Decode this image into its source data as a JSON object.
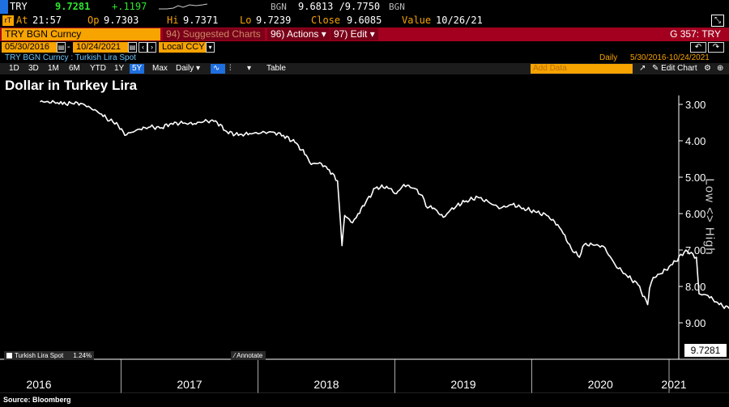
{
  "header": {
    "ticker": "TRY",
    "last": "9.7281",
    "change": "+.1197",
    "bid_ask_source": "BGN",
    "bid_ask": "9.6813 /9.7750",
    "bid_ask_source2": "BGN",
    "at_label": "At",
    "time": "21:57",
    "op_label": "Op",
    "op": "9.7303",
    "hi_label": "Hi",
    "hi": "9.7371",
    "lo_label": "Lo",
    "lo": "9.7239",
    "close_label": "Close",
    "close": "9.6085",
    "value_label": "Value",
    "value_date": "10/26/21"
  },
  "toolbar": {
    "security": "TRY BGN Curncy",
    "suggested": "94) Suggested Charts",
    "actions": "96) Actions",
    "edit": "97) Edit",
    "page_id": "G 357: TRY"
  },
  "range": {
    "start": "05/30/2016",
    "end": "10/24/2021",
    "currency": "Local CCY"
  },
  "info": {
    "description": "TRY BGN Curncy : Turkish Lira Spot",
    "frequency": "Daily",
    "period": "5/30/2016-10/24/2021"
  },
  "periods": [
    "1D",
    "3D",
    "1M",
    "6M",
    "YTD",
    "1Y",
    "5Y",
    "Max"
  ],
  "selected_period": "5Y",
  "controls": {
    "daily": "Daily",
    "table": "Table",
    "add_data": "Add Data",
    "edit_chart": "Edit Chart"
  },
  "title": "Dollar in Turkey Lira",
  "source": "Source: Bloomberg",
  "annotate": "Annotate",
  "side_label": "Low <> High",
  "colors": {
    "amber": "#f7a300",
    "bar_red": "#a3001f",
    "up_green": "#2ee52e",
    "line": "#ffffff"
  },
  "chart_data": {
    "type": "line",
    "title": "Dollar in Turkey Lira",
    "y_axis_inverted": true,
    "ylim": [
      3.0,
      9.8
    ],
    "yticks": [
      "3.00",
      "4.00",
      "5.00",
      "6.00",
      "7.00",
      "8.00",
      "9.00"
    ],
    "x_year_labels": [
      "2016",
      "2017",
      "2018",
      "2019",
      "2020",
      "2021"
    ],
    "grid": false,
    "legend": {
      "label": "Turkish Lira Spot",
      "value": "1.24%",
      "position": "bottom-left"
    },
    "last_value": "9.7281",
    "series": [
      {
        "name": "Turkish Lira Spot",
        "x": [
          "2016-05-30",
          "2016-06-20",
          "2016-07-15",
          "2016-07-29",
          "2016-08-20",
          "2016-09-15",
          "2016-10-10",
          "2016-11-10",
          "2016-12-01",
          "2016-12-20",
          "2017-01-11",
          "2017-01-25",
          "2017-02-20",
          "2017-03-20",
          "2017-04-15",
          "2017-05-15",
          "2017-06-15",
          "2017-07-15",
          "2017-08-10",
          "2017-09-10",
          "2017-10-10",
          "2017-11-10",
          "2017-12-10",
          "2018-01-10",
          "2018-02-10",
          "2018-03-10",
          "2018-04-10",
          "2018-05-10",
          "2018-05-23",
          "2018-06-15",
          "2018-07-10",
          "2018-08-01",
          "2018-08-13",
          "2018-08-20",
          "2018-09-10",
          "2018-09-25",
          "2018-10-15",
          "2018-11-10",
          "2018-12-10",
          "2019-01-05",
          "2019-01-25",
          "2019-02-20",
          "2019-03-15",
          "2019-03-25",
          "2019-04-15",
          "2019-05-10",
          "2019-05-25",
          "2019-06-15",
          "2019-07-10",
          "2019-08-10",
          "2019-09-10",
          "2019-10-10",
          "2019-11-10",
          "2019-12-10",
          "2020-01-10",
          "2020-02-10",
          "2020-03-10",
          "2020-03-25",
          "2020-04-15",
          "2020-05-07",
          "2020-05-20",
          "2020-06-10",
          "2020-07-10",
          "2020-08-10",
          "2020-09-10",
          "2020-10-10",
          "2020-11-05",
          "2020-11-10",
          "2020-11-20",
          "2020-12-10",
          "2021-01-10",
          "2021-02-15",
          "2021-03-15",
          "2021-03-22",
          "2021-04-15",
          "2021-05-15",
          "2021-06-10",
          "2021-07-10",
          "2021-08-10",
          "2021-09-10",
          "2021-09-30",
          "2021-10-10",
          "2021-10-20",
          "2021-10-24"
        ],
        "y": [
          2.93,
          2.92,
          2.95,
          3.0,
          2.96,
          2.97,
          3.08,
          3.27,
          3.45,
          3.5,
          3.85,
          3.78,
          3.68,
          3.62,
          3.65,
          3.52,
          3.52,
          3.53,
          3.47,
          3.45,
          3.75,
          3.85,
          3.8,
          3.78,
          3.76,
          3.85,
          4.05,
          4.4,
          4.65,
          4.6,
          4.8,
          5.1,
          6.88,
          6.05,
          6.25,
          6.0,
          5.7,
          5.3,
          5.25,
          5.45,
          5.2,
          5.3,
          5.5,
          5.8,
          5.85,
          6.1,
          5.95,
          5.78,
          5.65,
          5.55,
          5.7,
          5.85,
          5.75,
          5.85,
          5.95,
          6.05,
          6.3,
          6.55,
          6.95,
          7.2,
          6.85,
          6.85,
          6.9,
          7.4,
          7.7,
          7.95,
          8.5,
          8.05,
          7.75,
          7.65,
          7.4,
          7.0,
          7.2,
          8.2,
          8.25,
          8.5,
          8.6,
          8.7,
          8.6,
          8.4,
          8.6,
          8.9,
          9.3,
          9.73
        ]
      }
    ]
  }
}
